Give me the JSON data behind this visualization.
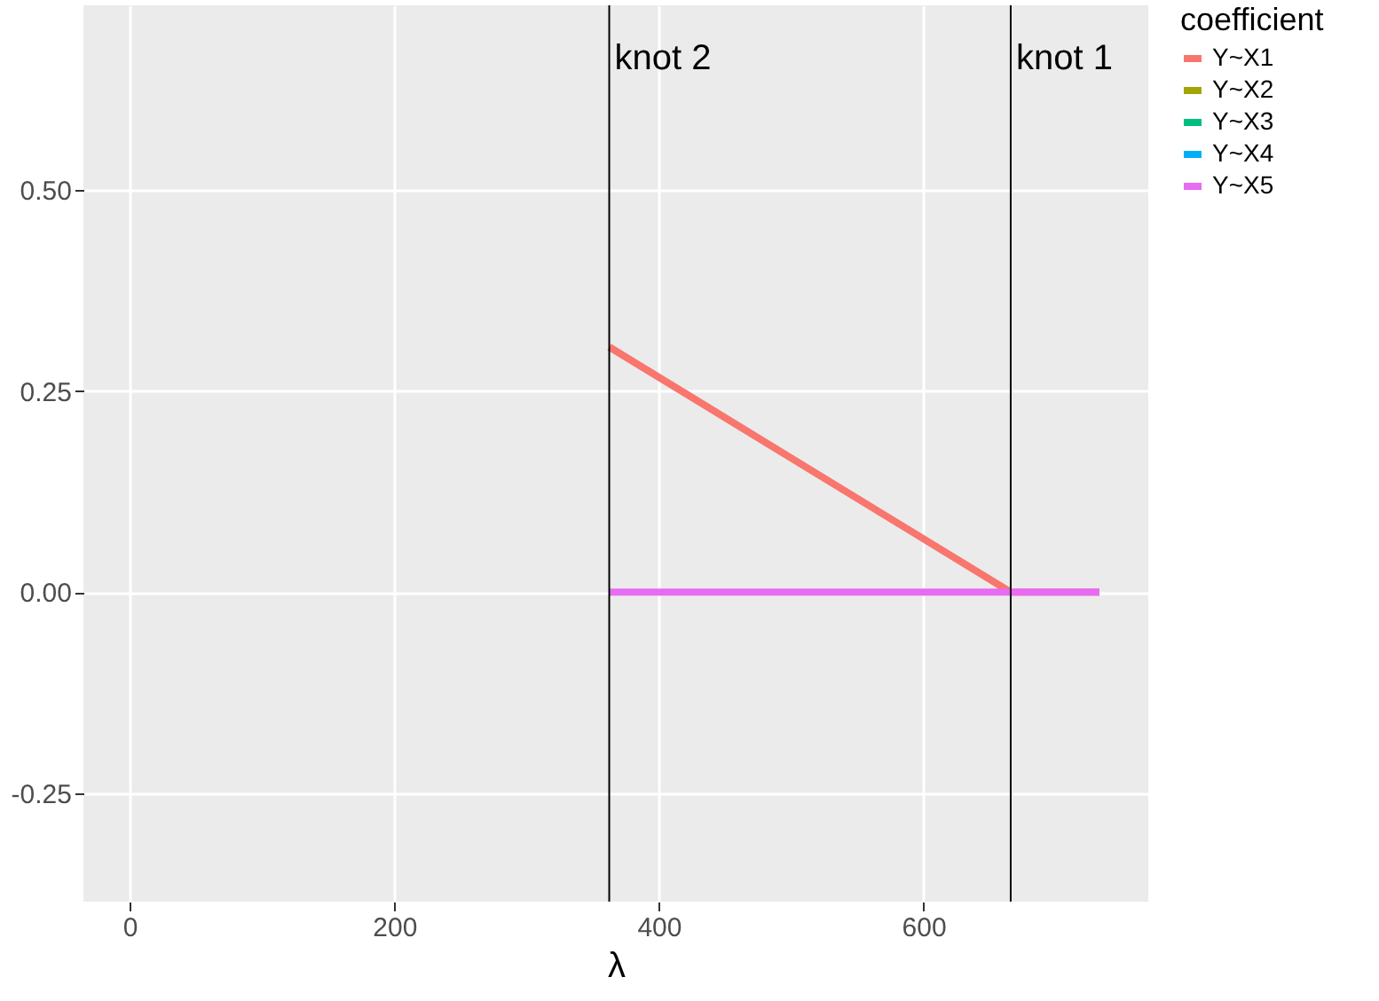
{
  "chart_data": {
    "type": "line",
    "xlabel": "λ",
    "legend_title": "coefficient",
    "x": [
      362.5,
      666,
      733
    ],
    "series": [
      {
        "name": "Y~X1",
        "color": "#F8766D",
        "values": [
          0.305,
          0,
          0
        ]
      },
      {
        "name": "Y~X2",
        "color": "#A3A500",
        "values": [
          null,
          null,
          null
        ]
      },
      {
        "name": "Y~X3",
        "color": "#00BF7D",
        "values": [
          null,
          null,
          null
        ]
      },
      {
        "name": "Y~X4",
        "color": "#00B0F6",
        "values": [
          null,
          null,
          null
        ]
      },
      {
        "name": "Y~X5",
        "color": "#E76BF3",
        "values": [
          0,
          0,
          0
        ]
      }
    ],
    "xlim": [
      -35,
      770
    ],
    "xticks": [
      0,
      200,
      400,
      600
    ],
    "ylim": [
      -0.385,
      0.73
    ],
    "yticks": [
      {
        "value": -0.25,
        "label": "-0.25"
      },
      {
        "value": 0,
        "label": "0.00"
      },
      {
        "value": 0.25,
        "label": "0.25"
      },
      {
        "value": 0.5,
        "label": "0.50"
      }
    ],
    "ref_lines": [
      {
        "axis": "x",
        "value": 362.5,
        "label": "knot 2",
        "color": "#000000"
      },
      {
        "axis": "x",
        "value": 666,
        "label": "knot 1",
        "color": "#000000"
      }
    ],
    "grid": true,
    "legend": "right",
    "marker": "none",
    "line_style": "solid"
  }
}
